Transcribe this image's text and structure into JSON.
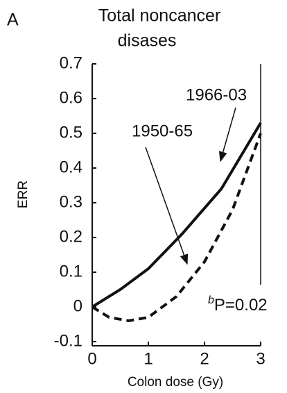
{
  "chart_data": {
    "type": "line",
    "panel_label": "A",
    "title": [
      "Total noncancer",
      "disases"
    ],
    "x_label": "Colon dose (Gy)",
    "y_label": "ERR",
    "xlim": [
      0,
      3
    ],
    "xticks": [
      0,
      1,
      2,
      3
    ],
    "ylim": [
      -0.1,
      0.7
    ],
    "yticks": [
      -0.1,
      0,
      0.1,
      0.2,
      0.3,
      0.4,
      0.5,
      0.6,
      0.7
    ],
    "series": [
      {
        "name": "1966-03",
        "color": "#111111",
        "dash": false,
        "x": [
          0,
          0.5,
          1,
          1.6,
          2.3,
          3
        ],
        "values": [
          0,
          0.05,
          0.11,
          0.21,
          0.34,
          0.53
        ]
      },
      {
        "name": "1950-65",
        "color": "#111111",
        "dash": true,
        "x": [
          0,
          0.3,
          0.65,
          1,
          1.5,
          2,
          2.5,
          3
        ],
        "values": [
          0,
          -0.03,
          -0.04,
          -0.03,
          0.03,
          0.13,
          0.28,
          0.5
        ]
      }
    ],
    "annotation": {
      "superscript": "b",
      "text": "P=0.02"
    }
  }
}
